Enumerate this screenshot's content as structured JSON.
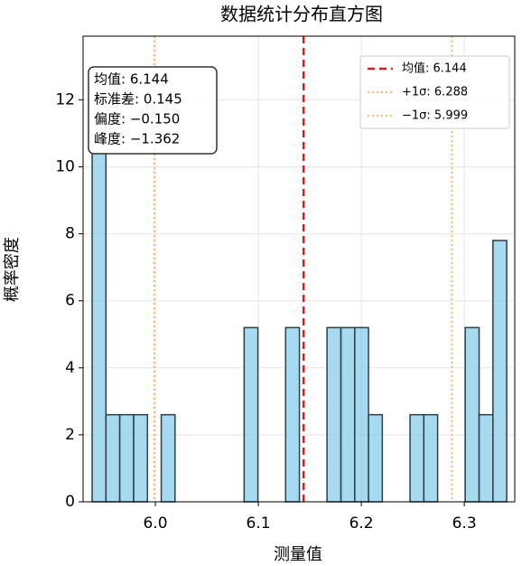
{
  "chart_data": {
    "type": "histogram",
    "title": "数据统计分布直方图",
    "x_label": "测量值",
    "y_label": "概率密度",
    "bins": [
      5.9386,
      5.952,
      5.9654,
      5.9789,
      5.9923,
      6.0057,
      6.0191,
      6.0325,
      6.046,
      6.0594,
      6.0728,
      6.0862,
      6.0996,
      6.1131,
      6.1265,
      6.1399,
      6.1533,
      6.1667,
      6.1802,
      6.1936,
      6.207,
      6.2204,
      6.2338,
      6.2473,
      6.2607,
      6.2741,
      6.2875,
      6.3009,
      6.3144,
      6.3278,
      6.3412
    ],
    "values": [
      10.4,
      2.6,
      2.6,
      2.6,
      0,
      2.6,
      0,
      0,
      0,
      0,
      0,
      5.2,
      0,
      0,
      5.2,
      0,
      0,
      5.2,
      5.2,
      5.2,
      2.6,
      0,
      0,
      2.6,
      2.6,
      0,
      0,
      5.2,
      2.6,
      7.8
    ],
    "color": "#87ceeb",
    "edge_color": "#2f3f46",
    "xlim": [
      5.9298,
      6.349
    ],
    "ylim": [
      0,
      13.9
    ],
    "xticks": [
      {
        "value": 6.0,
        "label": "6.0"
      },
      6.1,
      6.2,
      6.3
    ],
    "yticks": [
      0,
      2,
      4,
      6,
      8,
      10,
      12
    ],
    "grid": true,
    "lines": [
      {
        "name": "均值: 6.144",
        "value": 6.144,
        "color": "#e31a1c",
        "style": "dashed"
      },
      {
        "name": "+1σ: 6.288",
        "value": 6.288,
        "color": "#f0a830",
        "style": "dotted"
      },
      {
        "name": "−1σ: 5.999",
        "value": 5.999,
        "color": "#f0a830",
        "style": "dotted"
      }
    ],
    "legend": "upper right",
    "stats_box": [
      "均值: 6.144",
      "标准差: 0.145",
      "偏度: −0.150",
      "峰度: −1.362"
    ]
  }
}
